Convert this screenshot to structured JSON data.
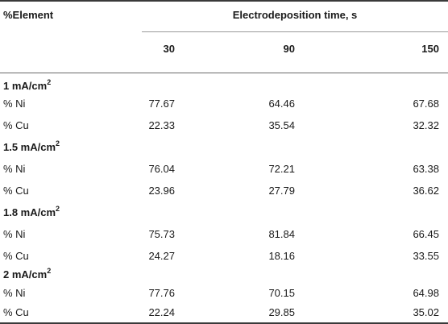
{
  "header": {
    "row_label": "%Element",
    "group_label": "Electrodeposition time, s",
    "columns": [
      "30",
      "90",
      "150"
    ]
  },
  "sections": [
    {
      "label": "1 mA/cm",
      "sup": "2",
      "rows": [
        {
          "label": "% Ni",
          "values": [
            "77.67",
            "64.46",
            "67.68"
          ]
        },
        {
          "label": "% Cu",
          "values": [
            "22.33",
            "35.54",
            "32.32"
          ]
        }
      ]
    },
    {
      "label": "1.5 mA/cm",
      "sup": "2",
      "rows": [
        {
          "label": "% Ni",
          "values": [
            "76.04",
            "72.21",
            "63.38"
          ]
        },
        {
          "label": "% Cu",
          "values": [
            "23.96",
            "27.79",
            "36.62"
          ]
        }
      ]
    },
    {
      "label": "1.8 mA/cm",
      "sup": "2",
      "rows": [
        {
          "label": "% Ni",
          "values": [
            "75.73",
            "81.84",
            "66.45"
          ]
        },
        {
          "label": "% Cu",
          "values": [
            "24.27",
            "18.16",
            "33.55"
          ]
        }
      ]
    },
    {
      "label": "2 mA/cm",
      "sup": "2",
      "rows": [
        {
          "label": "% Ni",
          "values": [
            "77.76",
            "70.15",
            "64.98"
          ]
        },
        {
          "label": "% Cu",
          "values": [
            "22.24",
            "29.85",
            "35.02"
          ]
        }
      ]
    }
  ]
}
